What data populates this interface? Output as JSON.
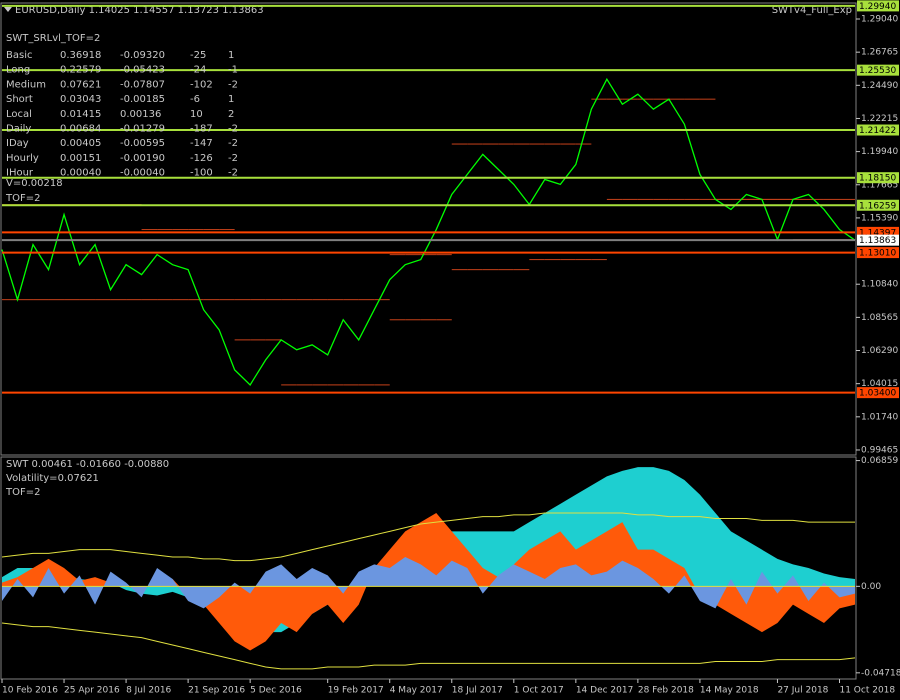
{
  "chart_data": [
    {
      "type": "line",
      "title": "EURUSD,Daily  1.14025 1.14557 1.13723 1.13863",
      "subtitle": "SWTv4_Full_Exp",
      "categories": [
        "10 Feb 2016",
        null,
        null,
        null,
        "25 Apr 2016",
        null,
        null,
        null,
        "8 Jul 2016",
        null,
        null,
        null,
        "21 Sep 2016",
        null,
        null,
        null,
        "5 Dec 2016",
        null,
        null,
        null,
        null,
        "19 Feb 2017",
        null,
        null,
        null,
        "4 May 2017",
        null,
        null,
        null,
        "18 Jul 2017",
        null,
        null,
        null,
        "1 Oct 2017",
        null,
        null,
        null,
        "14 Dec 2017",
        null,
        null,
        null,
        "28 Feb 2018",
        null,
        null,
        null,
        "14 May 2018",
        null,
        null,
        null,
        null,
        "27 Jul 2018",
        null,
        null,
        null,
        "11 Oct 2018",
        null
      ],
      "series": [
        {
          "style": "step",
          "color": "#c8421a",
          "values": [
            1.163,
            1.163,
            1.163,
            1.163,
            1.163,
            1.163,
            1.163,
            1.163,
            1.163,
            1.1459,
            1.1459,
            1.1459,
            1.1459,
            1.1459,
            1.1459,
            1.0978,
            1.0978,
            1.0978,
            1.0978,
            1.0978,
            1.0978,
            1.0978,
            1.0978,
            1.0978,
            1.0978,
            1.1287,
            1.1287,
            1.1287,
            1.1287,
            1.2046,
            1.2046,
            1.2046,
            1.2046,
            1.2046,
            1.2046,
            1.2046,
            1.2046,
            1.2046,
            1.2354,
            1.2354,
            1.2354,
            1.2354,
            1.2354,
            1.2354,
            1.2354,
            1.2354,
            1.1666,
            1.1666,
            1.1666,
            1.1666,
            1.1666,
            1.1666,
            1.1666,
            1.1666,
            1.1666,
            1.1666
          ]
        },
        {
          "style": "step",
          "color": "#c8421a",
          "values": [
            1.0978,
            1.0978,
            1.0978,
            1.0978,
            1.0978,
            1.0978,
            1.0978,
            1.0978,
            1.0978,
            1.0978,
            1.0978,
            1.0978,
            1.0978,
            1.0978,
            1.0978,
            1.0702,
            1.0702,
            1.0702,
            1.0393,
            1.0393,
            1.0393,
            1.0393,
            1.0393,
            1.0393,
            1.0393,
            1.084,
            1.084,
            1.084,
            1.084,
            1.1184,
            1.1184,
            1.1184,
            1.1184,
            1.1184,
            1.1253,
            1.1253,
            1.1253,
            1.1253,
            1.1253,
            1.1666,
            1.1666,
            1.1666,
            1.1666,
            1.1666,
            1.1666,
            1.1666,
            1.1666,
            1.1666,
            1.1666,
            1.1666,
            1.1666,
            1.139,
            1.139,
            1.139,
            1.139,
            1.139
          ]
        },
        {
          "style": "line",
          "color": "#00ff00",
          "values": [
            1.1322,
            1.0978,
            1.1356,
            1.1184,
            1.1562,
            1.1218,
            1.1356,
            1.1046,
            1.1218,
            1.115,
            1.1287,
            1.1218,
            1.1184,
            1.0909,
            1.0771,
            1.0496,
            1.0393,
            1.0565,
            1.0702,
            1.0634,
            1.0668,
            1.0599,
            1.084,
            1.0702,
            1.0909,
            1.1115,
            1.1218,
            1.1253,
            1.1459,
            1.17,
            1.1838,
            1.1975,
            1.1872,
            1.1769,
            1.1631,
            1.1803,
            1.1769,
            1.1906,
            1.2285,
            1.2491,
            1.2319,
            1.2388,
            1.2285,
            1.2354,
            1.2182,
            1.1838,
            1.1666,
            1.1597,
            1.17,
            1.1666,
            1.139,
            1.1666,
            1.17,
            1.1597,
            1.1459,
            1.1386
          ]
        }
      ],
      "ylim": [
        0.9912,
        1.3007
      ],
      "yticks": [
        {
          "value": 1.2904,
          "label": "1.29040"
        },
        1.26765,
        {
          "value": 1.2449,
          "label": "1.24490"
        },
        1.22215,
        {
          "value": 1.1994,
          "label": "1.19940"
        },
        1.17665,
        {
          "value": 1.1539,
          "label": "1.15390"
        },
        {
          "value": 1.1084,
          "label": "1.10840"
        },
        1.08565,
        {
          "value": 1.0629,
          "label": "1.06290"
        },
        1.04015,
        {
          "value": 1.0174,
          "label": "1.01740"
        },
        0.99465
      ],
      "levels": [
        {
          "value": 1.2994,
          "label": "1.29940",
          "color": "#a8e03c"
        },
        {
          "value": 1.2553,
          "label": "1.25530",
          "color": "#a8e03c"
        },
        {
          "value": 1.21422,
          "label": "1.21422",
          "color": "#a8e03c"
        },
        {
          "value": 1.1815,
          "label": "1.18150",
          "color": "#a8e03c"
        },
        {
          "value": 1.16259,
          "label": "1.16259",
          "color": "#a8e03c"
        },
        {
          "value": 1.14397,
          "label": "1.14397",
          "color": "#ff4500"
        },
        {
          "value": 1.13863,
          "label": "1.13863",
          "color": "#ffffff"
        },
        {
          "value": 1.1301,
          "label": "1.13010",
          "color": "#ff4500"
        },
        {
          "value": 1.034,
          "label": "1.03400",
          "color": "#ff4500"
        }
      ],
      "info": {
        "title": "SWT_SRLvl_TOF=2",
        "rows": [
          [
            "Basic",
            "0.36918",
            "-0.09320",
            "-25",
            "1"
          ],
          [
            "Long",
            "0.22579",
            "-0.05423",
            "-24",
            "-1"
          ],
          [
            "Medium",
            "0.07621",
            "-0.07807",
            "-102",
            "-2"
          ],
          [
            "Short",
            "0.03043",
            "-0.00185",
            "-6",
            "1"
          ],
          [
            "Local",
            "0.01415",
            "0.00136",
            "10",
            "2"
          ],
          [
            "Daily",
            "0.00684",
            "-0.01279",
            "-187",
            "-2"
          ],
          [
            "IDay",
            "0.00405",
            "-0.00595",
            "-147",
            "-2"
          ],
          [
            "Hourly",
            "0.00151",
            "-0.00190",
            "-126",
            "-2"
          ],
          [
            "IHour",
            "0.00040",
            "-0.00040",
            "-100",
            "-2"
          ]
        ],
        "notes": [
          "V=0.00218",
          "TOF=2"
        ]
      }
    },
    {
      "type": "area",
      "title": "SWT 0.00461 -0.01660 -0.00880",
      "notes": [
        "Volatility=0.07621",
        "TOF=2"
      ],
      "series": [
        {
          "style": "area",
          "color": "#1ecfd0",
          "values": [
            0.005,
            0.01,
            0.01,
            0.008,
            0.006,
            0.004,
            0.003,
            0.002,
            -0.002,
            -0.004,
            -0.005,
            -0.003,
            -0.006,
            -0.008,
            -0.01,
            -0.015,
            -0.02,
            -0.025,
            -0.025,
            -0.02,
            -0.015,
            -0.01,
            -0.005,
            0,
            0.005,
            0.01,
            0.015,
            0.02,
            0.025,
            0.03,
            0.03,
            0.03,
            0.03,
            0.03,
            0.035,
            0.04,
            0.045,
            0.05,
            0.055,
            0.06,
            0.063,
            0.065,
            0.065,
            0.063,
            0.058,
            0.05,
            0.04,
            0.03,
            0.025,
            0.02,
            0.015,
            0.012,
            0.01,
            0.007,
            0.005,
            0.004
          ]
        },
        {
          "style": "area",
          "color": "#ff5a0a",
          "values": [
            0.002,
            0.005,
            0.01,
            0.015,
            0.01,
            0.003,
            0.005,
            0.002,
            0,
            -0.002,
            0.003,
            0.004,
            -0.005,
            -0.01,
            -0.02,
            -0.03,
            -0.035,
            -0.03,
            -0.02,
            -0.025,
            -0.015,
            -0.01,
            -0.02,
            -0.01,
            0.01,
            0.02,
            0.03,
            0.035,
            0.04,
            0.03,
            0.02,
            0.01,
            0.005,
            0.012,
            0.02,
            0.025,
            0.03,
            0.02,
            0.025,
            0.03,
            0.035,
            0.02,
            0.02,
            0.015,
            0.01,
            -0.005,
            -0.01,
            -0.015,
            -0.02,
            -0.025,
            -0.02,
            -0.01,
            -0.015,
            -0.02,
            -0.012,
            -0.01
          ]
        },
        {
          "style": "area",
          "color": "#6b96e0",
          "values": [
            -0.008,
            0.004,
            -0.006,
            0.01,
            -0.004,
            0.006,
            -0.01,
            0.008,
            0.002,
            -0.006,
            0.01,
            0.004,
            -0.008,
            -0.012,
            -0.006,
            0.002,
            -0.004,
            0.008,
            0.012,
            0.004,
            0.01,
            0.006,
            -0.004,
            0.008,
            0.012,
            0.01,
            0.016,
            0.012,
            0.006,
            0.014,
            0.01,
            -0.004,
            0.006,
            0.012,
            0.008,
            0.004,
            0.01,
            0.012,
            0.006,
            0.008,
            0.014,
            0.01,
            0.004,
            -0.004,
            0.006,
            -0.008,
            -0.012,
            0.004,
            -0.01,
            0.008,
            -0.004,
            0.006,
            -0.008,
            0.002,
            -0.006,
            -0.004
          ]
        },
        {
          "style": "line",
          "color": "#e0e040",
          "values": [
            0.016,
            0.017,
            0.018,
            0.018,
            0.019,
            0.02,
            0.02,
            0.02,
            0.019,
            0.018,
            0.017,
            0.016,
            0.016,
            0.015,
            0.015,
            0.014,
            0.014,
            0.015,
            0.016,
            0.018,
            0.02,
            0.022,
            0.024,
            0.026,
            0.028,
            0.03,
            0.032,
            0.034,
            0.035,
            0.036,
            0.037,
            0.038,
            0.038,
            0.039,
            0.039,
            0.04,
            0.04,
            0.04,
            0.04,
            0.04,
            0.04,
            0.039,
            0.039,
            0.038,
            0.038,
            0.038,
            0.037,
            0.037,
            0.037,
            0.036,
            0.036,
            0.036,
            0.035,
            0.035,
            0.035,
            0.035
          ]
        },
        {
          "style": "line",
          "color": "#e0e040",
          "values": [
            -0.02,
            -0.021,
            -0.022,
            -0.022,
            -0.023,
            -0.024,
            -0.025,
            -0.026,
            -0.027,
            -0.028,
            -0.03,
            -0.032,
            -0.034,
            -0.036,
            -0.038,
            -0.04,
            -0.042,
            -0.044,
            -0.045,
            -0.045,
            -0.045,
            -0.044,
            -0.044,
            -0.044,
            -0.043,
            -0.043,
            -0.043,
            -0.042,
            -0.042,
            -0.042,
            -0.042,
            -0.042,
            -0.042,
            -0.042,
            -0.042,
            -0.042,
            -0.042,
            -0.042,
            -0.042,
            -0.042,
            -0.042,
            -0.042,
            -0.042,
            -0.042,
            -0.042,
            -0.042,
            -0.041,
            -0.041,
            -0.041,
            -0.041,
            -0.04,
            -0.04,
            -0.04,
            -0.04,
            -0.04,
            -0.039
          ]
        }
      ],
      "ylim": [
        -0.05,
        0.07
      ],
      "yticks": [
        0.06859,
        {
          "value": 0,
          "label": "0.00"
        },
        -0.04718
      ]
    }
  ]
}
